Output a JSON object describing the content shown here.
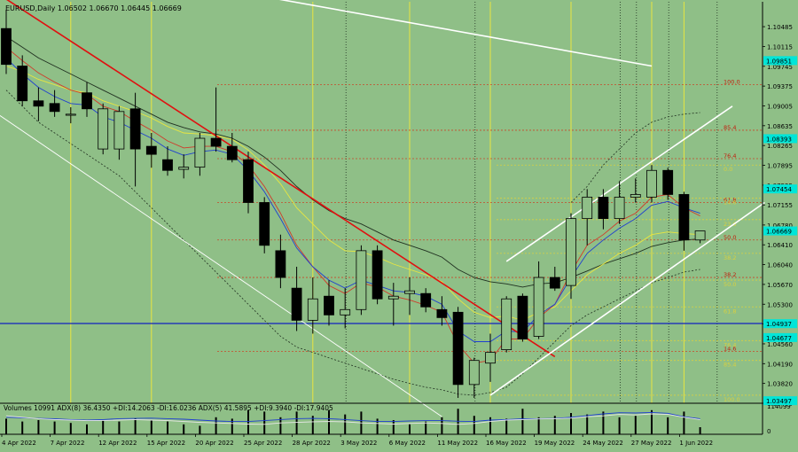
{
  "header": {
    "symbol_line": "EURUSD,Daily  1.06502 1.06670 1.06445 1.06669",
    "indicator_line": "Volumes 10991  ADX(8) 36.4350 +DI:14.2063 -DI:16.0236  ADX(5) 41.5895 +DI:9.3940 -DI:17.9405"
  },
  "colors": {
    "background": "#8fbf87",
    "bull_candle": "#8fbf87",
    "bear_candle": "#000000",
    "ema_fast": "#1f3fd0",
    "ema_mid": "#d03a2a",
    "ema_slow": "#e8e640",
    "sma_long": "#203020",
    "trendline_red": "#e01010",
    "channel_white": "#ffffff",
    "horizontal_blue": "#1020c0",
    "price_label_bg": "#00e5d8"
  },
  "chart_data": {
    "type": "candlestick",
    "symbol": "EURUSD",
    "timeframe": "Daily",
    "ohlc_last": {
      "open": 1.06502,
      "high": 1.0667,
      "low": 1.06445,
      "close": 1.06669
    },
    "y_axis": {
      "ylim": [
        1.0345,
        1.1095
      ],
      "ticks": [
        "1.10485",
        "1.10115",
        "1.09745",
        "1.09375",
        "1.09005",
        "1.08635",
        "1.08265",
        "1.07895",
        "1.07525",
        "1.07155",
        "1.06780",
        "1.06410",
        "1.06040",
        "1.05670",
        "1.05300",
        "1.04930",
        "1.04560",
        "1.04190",
        "1.03820",
        "1.03450"
      ],
      "highlighted_labels": [
        {
          "label": "1.09851",
          "value": 1.09851
        },
        {
          "label": "1.08393",
          "value": 1.08393
        },
        {
          "label": "1.07454",
          "value": 1.07454
        },
        {
          "label": "1.06669",
          "value": 1.06669
        },
        {
          "label": "1.04937",
          "value": 1.04937
        },
        {
          "label": "1.04677",
          "value": 1.04677
        },
        {
          "label": "1.03497",
          "value": 1.03497
        }
      ]
    },
    "x_axis": {
      "labels": [
        "4 Apr 2022",
        "7 Apr 2022",
        "12 Apr 2022",
        "15 Apr 2022",
        "20 Apr 2022",
        "25 Apr 2022",
        "28 Apr 2022",
        "3 May 2022",
        "6 May 2022",
        "11 May 2022",
        "16 May 2022",
        "19 May 2022",
        "24 May 2022",
        "27 May 2022",
        "1 Jun 2022"
      ],
      "label_bars": [
        0,
        3,
        6,
        9,
        12,
        15,
        18,
        21,
        24,
        27,
        30,
        33,
        36,
        39,
        42
      ]
    },
    "candles": [
      {
        "o": 1.1045,
        "h": 1.108,
        "l": 1.096,
        "c": 1.0978
      },
      {
        "o": 1.0975,
        "h": 1.0995,
        "l": 1.09,
        "c": 1.091
      },
      {
        "o": 1.091,
        "h": 1.0935,
        "l": 1.0872,
        "c": 1.09
      },
      {
        "o": 1.0905,
        "h": 1.093,
        "l": 1.088,
        "c": 1.089
      },
      {
        "o": 1.0883,
        "h": 1.0898,
        "l": 1.0868,
        "c": 1.0885
      },
      {
        "o": 1.0925,
        "h": 1.0945,
        "l": 1.088,
        "c": 1.0895
      },
      {
        "o": 1.082,
        "h": 1.0905,
        "l": 1.081,
        "c": 1.0895
      },
      {
        "o": 1.082,
        "h": 1.09,
        "l": 1.08,
        "c": 1.089
      },
      {
        "o": 1.0895,
        "h": 1.0925,
        "l": 1.075,
        "c": 1.082
      },
      {
        "o": 1.0825,
        "h": 1.085,
        "l": 1.0785,
        "c": 1.081
      },
      {
        "o": 1.08,
        "h": 1.0825,
        "l": 1.077,
        "c": 1.078
      },
      {
        "o": 1.0782,
        "h": 1.081,
        "l": 1.0765,
        "c": 1.0786
      },
      {
        "o": 1.0786,
        "h": 1.085,
        "l": 1.077,
        "c": 1.084
      },
      {
        "o": 1.084,
        "h": 1.0935,
        "l": 1.0815,
        "c": 1.0825
      },
      {
        "o": 1.0825,
        "h": 1.085,
        "l": 1.0795,
        "c": 1.08
      },
      {
        "o": 1.08,
        "h": 1.0815,
        "l": 1.07,
        "c": 1.072
      },
      {
        "o": 1.072,
        "h": 1.073,
        "l": 1.0625,
        "c": 1.064
      },
      {
        "o": 1.063,
        "h": 1.066,
        "l": 1.056,
        "c": 1.058
      },
      {
        "o": 1.056,
        "h": 1.06,
        "l": 1.048,
        "c": 1.05
      },
      {
        "o": 1.05,
        "h": 1.058,
        "l": 1.0475,
        "c": 1.054
      },
      {
        "o": 1.0545,
        "h": 1.0575,
        "l": 1.049,
        "c": 1.051
      },
      {
        "o": 1.051,
        "h": 1.056,
        "l": 1.0485,
        "c": 1.052
      },
      {
        "o": 1.052,
        "h": 1.064,
        "l": 1.051,
        "c": 1.063
      },
      {
        "o": 1.063,
        "h": 1.064,
        "l": 1.053,
        "c": 1.054
      },
      {
        "o": 1.054,
        "h": 1.057,
        "l": 1.049,
        "c": 1.0545
      },
      {
        "o": 1.055,
        "h": 1.058,
        "l": 1.051,
        "c": 1.0555
      },
      {
        "o": 1.055,
        "h": 1.056,
        "l": 1.0515,
        "c": 1.0525
      },
      {
        "o": 1.052,
        "h": 1.0545,
        "l": 1.049,
        "c": 1.0505
      },
      {
        "o": 1.0515,
        "h": 1.0525,
        "l": 1.0355,
        "c": 1.038
      },
      {
        "o": 1.038,
        "h": 1.043,
        "l": 1.0355,
        "c": 1.0425
      },
      {
        "o": 1.042,
        "h": 1.0475,
        "l": 1.0385,
        "c": 1.044
      },
      {
        "o": 1.0445,
        "h": 1.0545,
        "l": 1.044,
        "c": 1.054
      },
      {
        "o": 1.0545,
        "h": 1.055,
        "l": 1.046,
        "c": 1.0465
      },
      {
        "o": 1.047,
        "h": 1.061,
        "l": 1.0465,
        "c": 1.058
      },
      {
        "o": 1.058,
        "h": 1.06,
        "l": 1.0555,
        "c": 1.056
      },
      {
        "o": 1.0565,
        "h": 1.07,
        "l": 1.054,
        "c": 1.069
      },
      {
        "o": 1.069,
        "h": 1.0745,
        "l": 1.064,
        "c": 1.073
      },
      {
        "o": 1.073,
        "h": 1.0745,
        "l": 1.067,
        "c": 1.069
      },
      {
        "o": 1.069,
        "h": 1.076,
        "l": 1.068,
        "c": 1.073
      },
      {
        "o": 1.073,
        "h": 1.0765,
        "l": 1.072,
        "c": 1.0735
      },
      {
        "o": 1.073,
        "h": 1.079,
        "l": 1.072,
        "c": 1.078
      },
      {
        "o": 1.078,
        "h": 1.0785,
        "l": 1.0725,
        "c": 1.0735
      },
      {
        "o": 1.0735,
        "h": 1.074,
        "l": 1.063,
        "c": 1.065
      },
      {
        "o": 1.065,
        "h": 1.0667,
        "l": 1.0644,
        "c": 1.0667
      }
    ],
    "indicators": {
      "ema_fast_blue": [
        1.099,
        1.096,
        1.0935,
        1.0918,
        1.0905,
        1.0902,
        1.088,
        1.087,
        1.0855,
        1.084,
        1.082,
        1.0808,
        1.0815,
        1.0818,
        1.081,
        1.078,
        1.074,
        1.069,
        1.0635,
        1.06,
        1.0575,
        1.056,
        1.0575,
        1.0565,
        1.0555,
        1.0552,
        1.0545,
        1.053,
        1.048,
        1.046,
        1.046,
        1.048,
        1.0478,
        1.051,
        1.053,
        1.058,
        1.0625,
        1.065,
        1.0672,
        1.069,
        1.0715,
        1.0722,
        1.071,
        1.07
      ],
      "ema_mid_red": [
        1.101,
        1.0985,
        1.0962,
        1.0945,
        1.093,
        1.0922,
        1.09,
        1.089,
        1.0872,
        1.0855,
        1.0835,
        1.0822,
        1.0825,
        1.0825,
        1.0815,
        1.079,
        1.075,
        1.07,
        1.064,
        1.06,
        1.0565,
        1.055,
        1.057,
        1.0562,
        1.0545,
        1.0538,
        1.0528,
        1.0515,
        1.0455,
        1.042,
        1.0425,
        1.0465,
        1.0465,
        1.0505,
        1.053,
        1.059,
        1.064,
        1.066,
        1.0685,
        1.07,
        1.073,
        1.0735,
        1.071,
        1.0695
      ],
      "ema_slow_yellow": [
        1.0975,
        1.0965,
        1.095,
        1.094,
        1.093,
        1.0925,
        1.091,
        1.09,
        1.089,
        1.0878,
        1.0862,
        1.085,
        1.0848,
        1.0845,
        1.0838,
        1.0818,
        1.079,
        1.0755,
        1.071,
        1.068,
        1.065,
        1.063,
        1.0628,
        1.0618,
        1.0605,
        1.0595,
        1.0585,
        1.0572,
        1.054,
        1.0515,
        1.0505,
        1.0508,
        1.05,
        1.0515,
        1.0525,
        1.0555,
        1.0585,
        1.0605,
        1.0625,
        1.064,
        1.066,
        1.0665,
        1.0662,
        1.066
      ],
      "sma_long_black": [
        1.103,
        1.101,
        1.099,
        1.0975,
        1.096,
        1.0945,
        1.093,
        1.0915,
        1.09,
        1.0885,
        1.087,
        1.086,
        1.0852,
        1.0848,
        1.084,
        1.0825,
        1.0805,
        1.078,
        1.075,
        1.0725,
        1.0705,
        1.069,
        1.068,
        1.0665,
        1.065,
        1.064,
        1.063,
        1.0618,
        1.0595,
        1.058,
        1.0572,
        1.0568,
        1.0562,
        1.0568,
        1.057,
        1.058,
        1.0592,
        1.0605,
        1.0615,
        1.0625,
        1.0638,
        1.0645,
        1.065,
        1.0652
      ],
      "bb_upper_dotted": [
        null,
        null,
        null,
        null,
        null,
        null,
        null,
        null,
        null,
        null,
        null,
        null,
        null,
        null,
        null,
        null,
        null,
        null,
        null,
        null,
        null,
        null,
        null,
        null,
        null,
        null,
        null,
        null,
        null,
        null,
        null,
        null,
        null,
        null,
        null,
        1.072,
        1.075,
        1.079,
        1.082,
        1.085,
        1.087,
        1.088,
        1.0885,
        1.0888
      ],
      "bb_lower_dotted": [
        1.093,
        1.09,
        1.087,
        1.085,
        1.083,
        1.081,
        1.079,
        1.077,
        1.074,
        1.071,
        1.068,
        1.065,
        1.062,
        1.059,
        1.056,
        1.053,
        1.05,
        1.047,
        1.045,
        1.044,
        1.043,
        1.042,
        1.041,
        1.04,
        1.039,
        1.0382,
        1.0375,
        1.037,
        1.0362,
        1.036,
        1.0365,
        1.0375,
        1.04,
        1.043,
        1.046,
        1.049,
        1.051,
        1.0525,
        1.054,
        1.0555,
        1.057,
        1.058,
        1.059,
        1.0595
      ]
    },
    "fib_levels_red": [
      {
        "label": "100.0",
        "value": 1.094
      },
      {
        "label": "85.4",
        "value": 1.0855
      },
      {
        "label": "76.4",
        "value": 1.0802
      },
      {
        "label": "61.8",
        "value": 1.072
      },
      {
        "label": "50.0",
        "value": 1.065
      },
      {
        "label": "38.2",
        "value": 1.058
      },
      {
        "label": "14.6",
        "value": 1.0442
      }
    ],
    "fib_levels_yellow": [
      {
        "label": "0.0",
        "value": 1.079
      },
      {
        "label": "14.6",
        "value": 1.0728
      },
      {
        "label": "23.6",
        "value": 1.0688
      },
      {
        "label": "38.2",
        "value": 1.0625
      },
      {
        "label": "50.0",
        "value": 1.0575
      },
      {
        "label": "61.8",
        "value": 1.0525
      },
      {
        "label": "76.4",
        "value": 1.0462
      },
      {
        "label": "85.4",
        "value": 1.0425
      },
      {
        "label": "100.0",
        "value": 1.036
      }
    ],
    "trendlines": [
      {
        "name": "red-downtrend",
        "points": [
          [
            0,
            1.11
          ],
          [
            34,
            1.0432
          ]
        ]
      },
      {
        "name": "white-upper",
        "points": [
          [
            15,
            1.111
          ],
          [
            40,
            1.0975
          ]
        ]
      },
      {
        "name": "white-lower-left",
        "points": [
          [
            -1,
            1.0895
          ],
          [
            27,
            1.032
          ]
        ]
      },
      {
        "name": "white-channel-low",
        "points": [
          [
            30,
            1.036
          ],
          [
            47,
            1.072
          ]
        ]
      },
      {
        "name": "white-channel-high",
        "points": [
          [
            31,
            1.061
          ],
          [
            45,
            1.09
          ]
        ]
      }
    ],
    "horizontal_line": {
      "value": 1.0494
    },
    "vlines_yellow": [
      4,
      9,
      19,
      25,
      30,
      35,
      40,
      42
    ],
    "vlines_dotted": [
      21,
      29,
      38,
      39,
      41,
      44
    ],
    "volume_panel": {
      "ylabels": [
        "114099",
        "0"
      ],
      "volume": [
        0.55,
        0.45,
        0.5,
        0.45,
        0.4,
        0.35,
        0.5,
        0.45,
        0.55,
        0.5,
        0.45,
        0.35,
        0.3,
        0.6,
        0.55,
        0.85,
        0.8,
        0.6,
        0.8,
        0.65,
        0.85,
        0.7,
        0.8,
        0.55,
        0.5,
        0.35,
        0.45,
        0.6,
        0.9,
        0.65,
        0.6,
        0.55,
        0.9,
        0.6,
        0.65,
        0.75,
        0.7,
        0.8,
        0.6,
        0.65,
        0.85,
        0.6,
        0.8,
        0.25
      ],
      "adx_line": [
        0.6,
        0.58,
        0.56,
        0.55,
        0.52,
        0.5,
        0.52,
        0.55,
        0.56,
        0.57,
        0.55,
        0.53,
        0.5,
        0.47,
        0.45,
        0.45,
        0.48,
        0.52,
        0.55,
        0.56,
        0.55,
        0.52,
        0.48,
        0.45,
        0.45,
        0.47,
        0.48,
        0.48,
        0.46,
        0.45,
        0.5,
        0.52,
        0.55,
        0.55,
        0.56,
        0.6,
        0.66,
        0.72,
        0.76,
        0.75,
        0.77,
        0.74,
        0.62,
        0.55
      ],
      "di_line": [
        0.65,
        0.6,
        0.55,
        0.52,
        0.5,
        0.48,
        0.48,
        0.5,
        0.52,
        0.5,
        0.48,
        0.45,
        0.42,
        0.4,
        0.38,
        0.36,
        0.35,
        0.4,
        0.42,
        0.44,
        0.45,
        0.44,
        0.4,
        0.38,
        0.36,
        0.38,
        0.4,
        0.38,
        0.35,
        0.38,
        0.45,
        0.5,
        0.52,
        0.54,
        0.55,
        0.57,
        0.62,
        0.65,
        0.7,
        0.68,
        0.72,
        0.7,
        0.6,
        0.52
      ]
    }
  }
}
